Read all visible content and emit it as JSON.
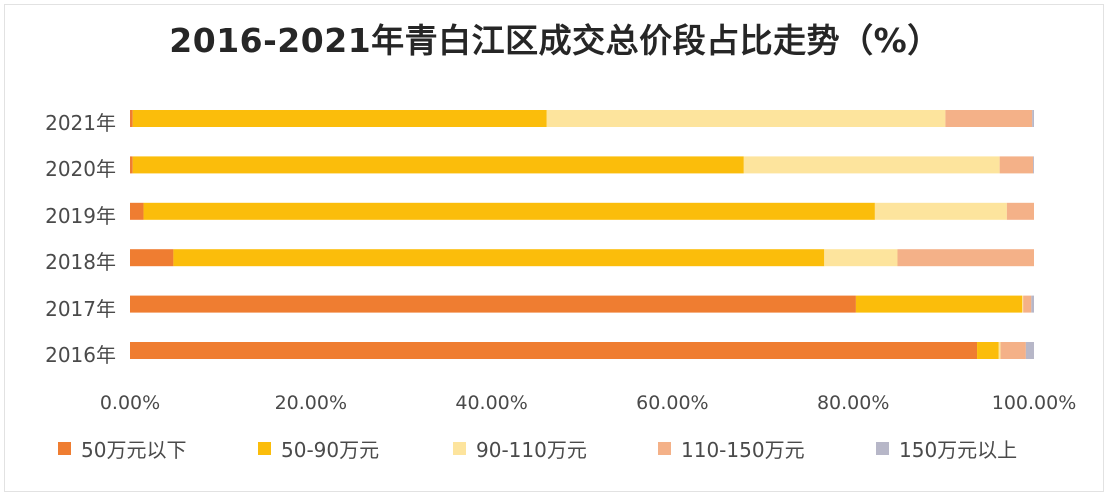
{
  "title": "2016-2021年青白江区成交总价段占比走势（%）",
  "chart_data": {
    "type": "bar",
    "orientation": "horizontal",
    "stacked": true,
    "categories": [
      "2021年",
      "2020年",
      "2019年",
      "2018年",
      "2017年",
      "2016年"
    ],
    "series": [
      {
        "name": "50万元以下",
        "color": "#ef7d31",
        "values": [
          0.3,
          0.3,
          1.5,
          4.8,
          80.3,
          93.7
        ]
      },
      {
        "name": "50-90万元",
        "color": "#fbbd0b",
        "values": [
          45.8,
          67.6,
          80.9,
          72.0,
          18.4,
          2.4
        ]
      },
      {
        "name": "90-110万元",
        "color": "#fde49d",
        "values": [
          44.1,
          28.3,
          14.6,
          8.1,
          0.1,
          0.2
        ]
      },
      {
        "name": "110-150万元",
        "color": "#f4b188",
        "values": [
          9.6,
          3.7,
          3.0,
          15.1,
          0.9,
          2.8
        ]
      },
      {
        "name": "150万元以上",
        "color": "#b7b7c8",
        "values": [
          0.2,
          0.1,
          0.0,
          0.0,
          0.3,
          0.9
        ]
      }
    ],
    "xlim": [
      0,
      100
    ],
    "xticks": [
      "0.00%",
      "20.00%",
      "40.00%",
      "60.00%",
      "80.00%",
      "100.00%"
    ],
    "grid": false,
    "legend_position": "bottom"
  }
}
